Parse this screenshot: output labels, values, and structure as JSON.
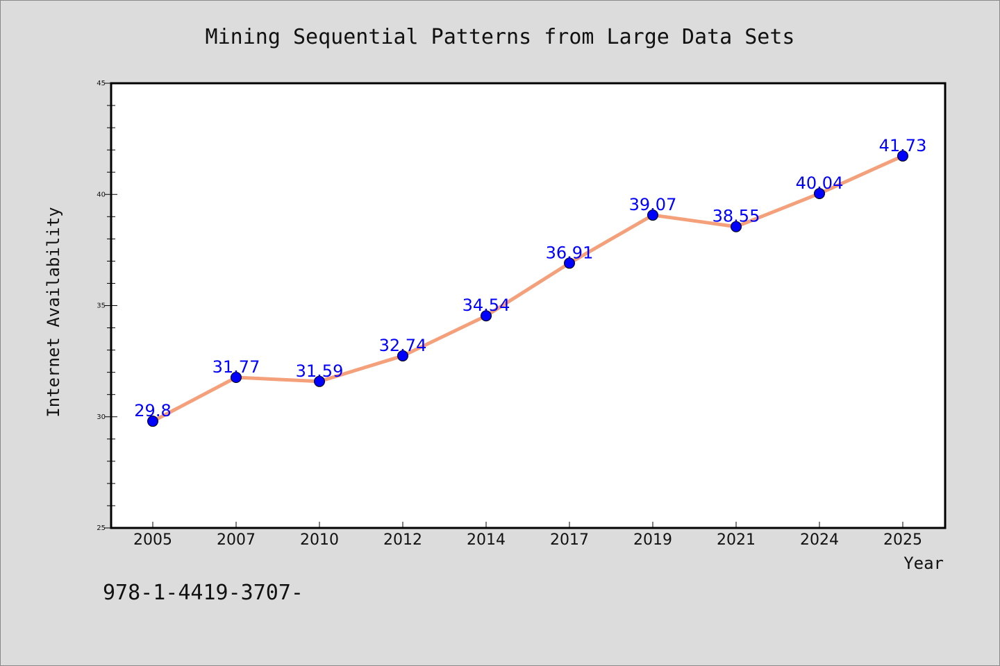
{
  "chart_data": {
    "type": "line",
    "title": "Mining Sequential Patterns from Large Data Sets",
    "xlabel": "Year",
    "ylabel": "Internet Availability",
    "categories": [
      "2005",
      "2007",
      "2010",
      "2012",
      "2014",
      "2017",
      "2019",
      "2021",
      "2024",
      "2025"
    ],
    "series": [
      {
        "values": [
          29.8,
          31.77,
          31.59,
          32.74,
          34.54,
          36.91,
          39.07,
          38.55,
          40.04,
          41.73
        ],
        "labels": [
          "29.8",
          "31.77",
          "31.59",
          "32.74",
          "34.54",
          "36.91",
          "39.07",
          "38.55",
          "40.04",
          "41.73"
        ],
        "line_color": "#f4a07a",
        "marker_color": "#0000ff"
      }
    ],
    "ylim": [
      25,
      45
    ],
    "y_ticks": [
      "25",
      "30",
      "35",
      "40",
      "45"
    ],
    "y_minor_step": 1,
    "grid": false,
    "background": "#dcdcdc",
    "plot_background": "#ffffff"
  },
  "footer": {
    "text": "978-1-4419-3707-"
  }
}
